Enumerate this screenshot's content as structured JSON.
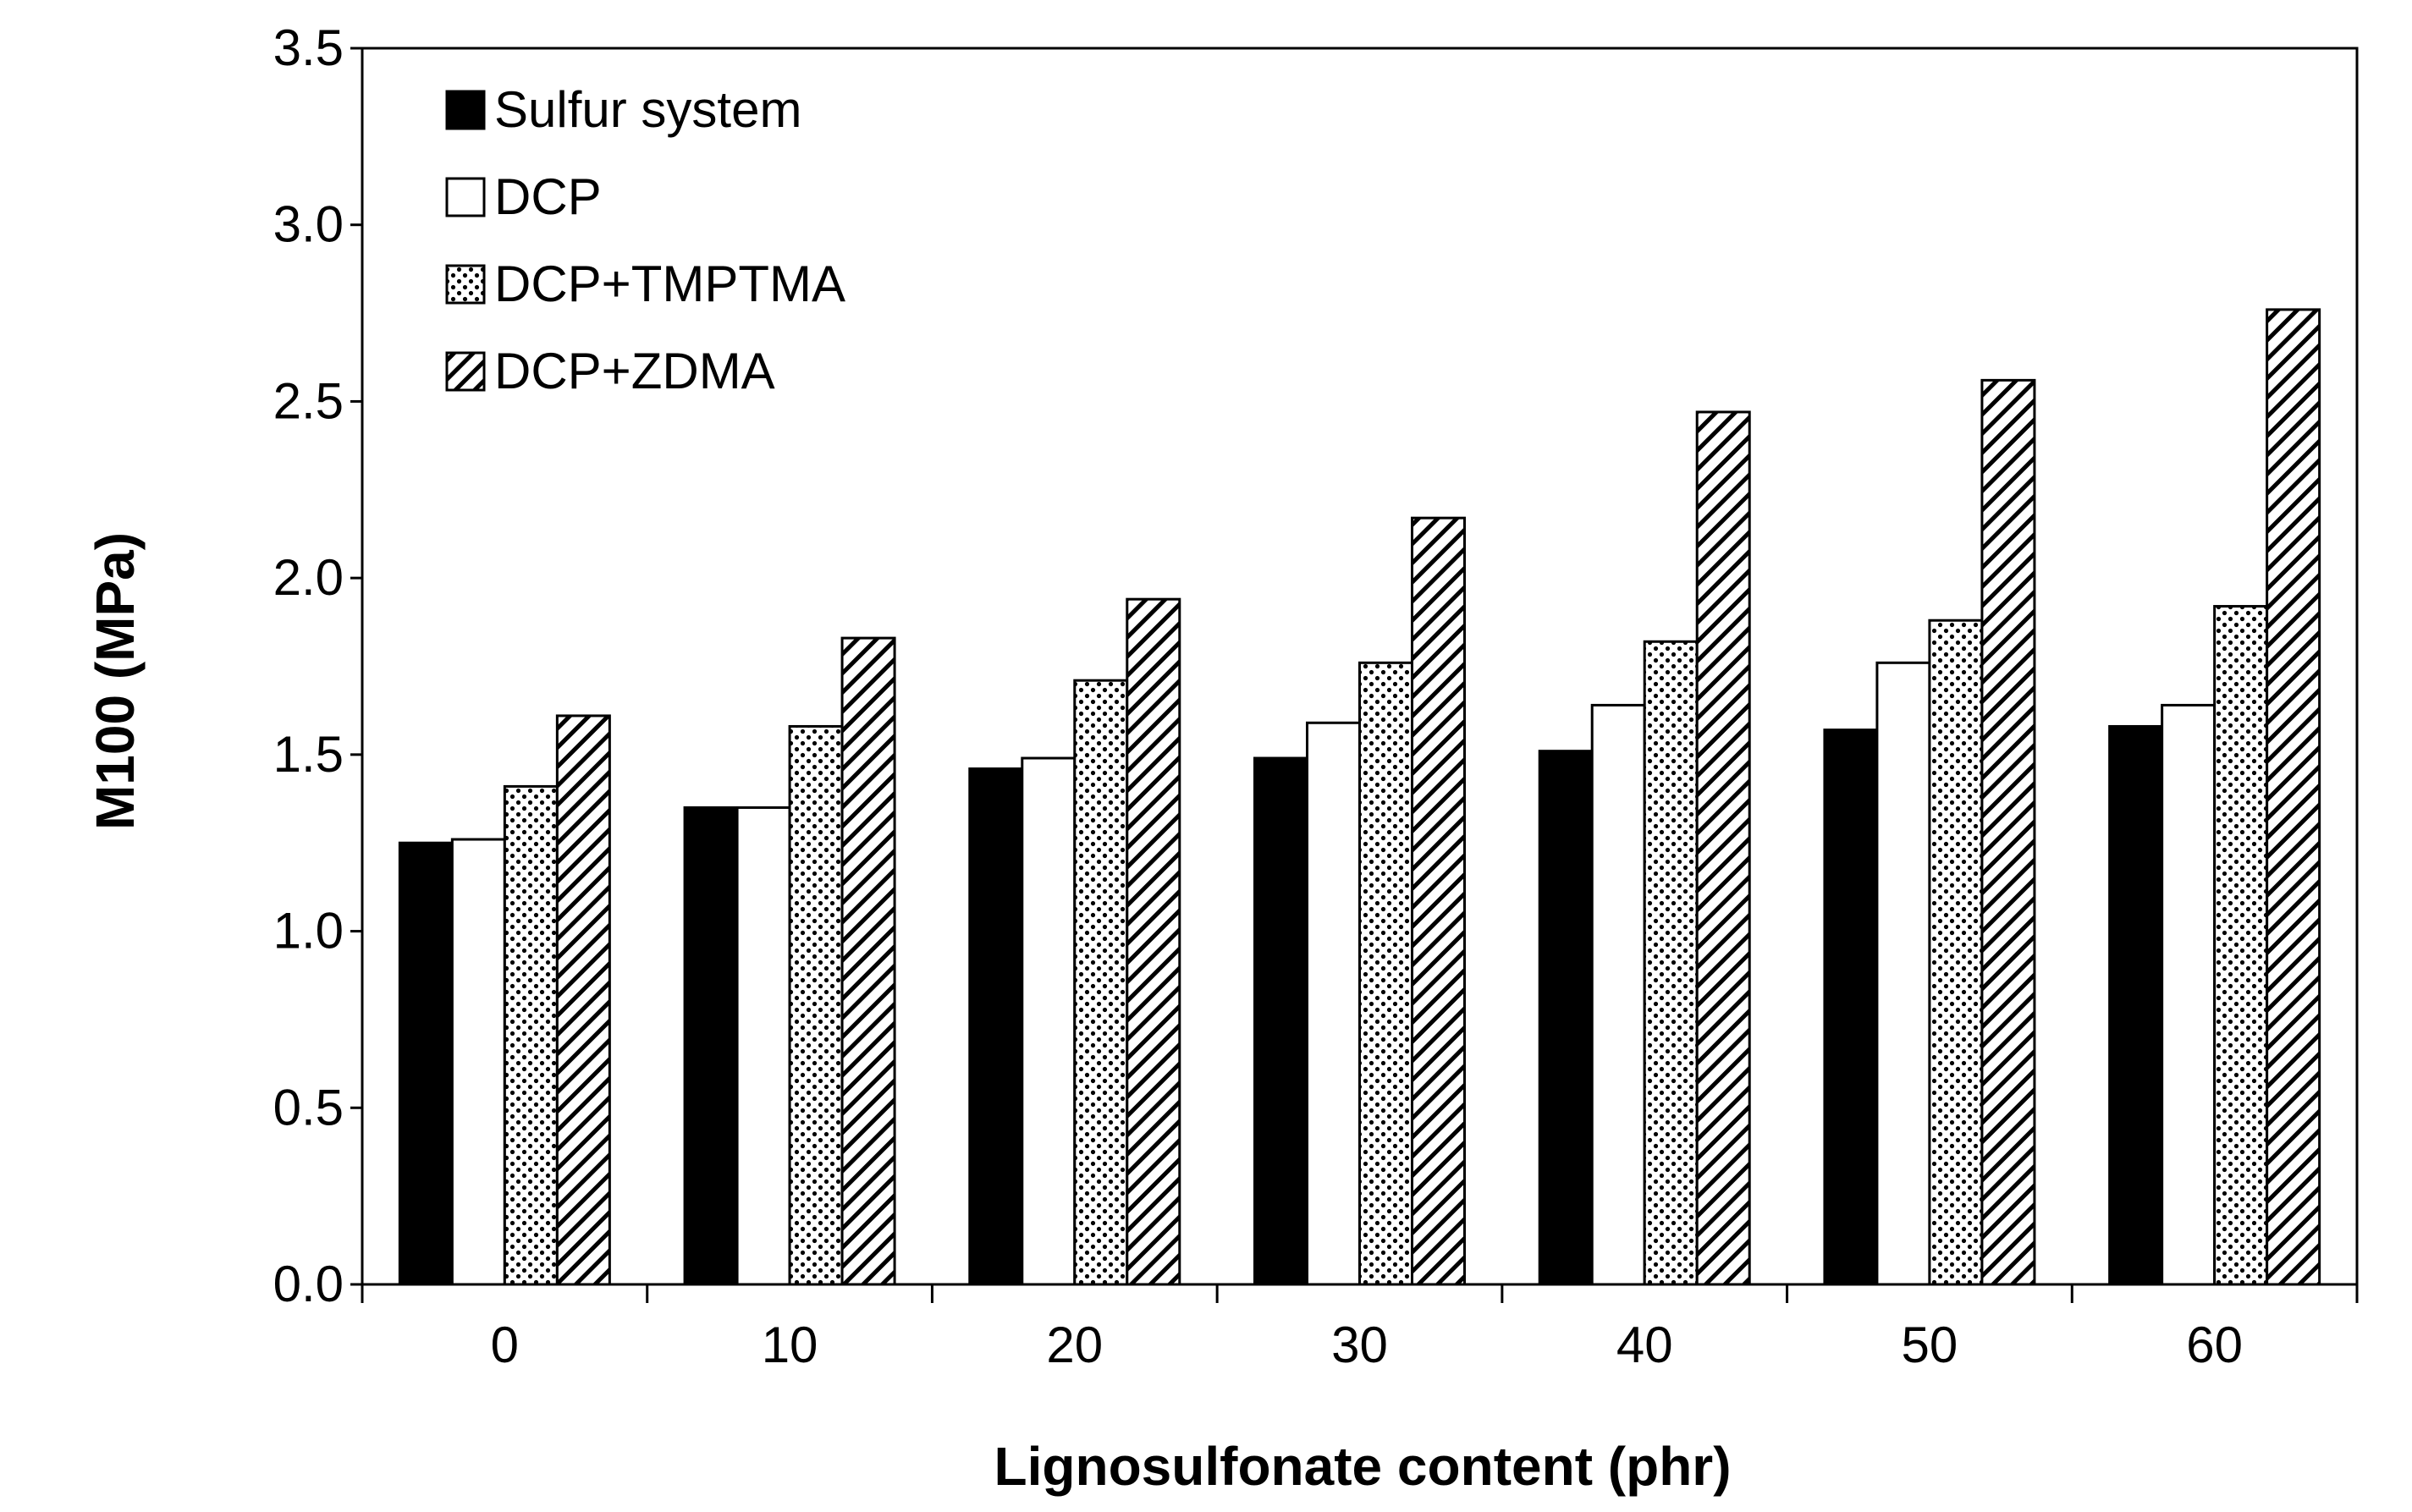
{
  "chart_data": {
    "type": "bar",
    "title": "",
    "xlabel": "Lignosulfonate content (phr)",
    "ylabel": "M100 (MPa)",
    "ylim": [
      0,
      3.5
    ],
    "yticks": [
      "0.0",
      "0.5",
      "1.0",
      "1.5",
      "2.0",
      "2.5",
      "3.0",
      "3.5"
    ],
    "categories": [
      "0",
      "10",
      "20",
      "30",
      "40",
      "50",
      "60"
    ],
    "legend_position": "top-left",
    "grid": false,
    "series": [
      {
        "name": "Sulfur system",
        "pattern": "solid",
        "color": "#000000",
        "values": [
          1.25,
          1.35,
          1.46,
          1.49,
          1.51,
          1.57,
          1.58
        ]
      },
      {
        "name": "DCP",
        "pattern": "empty",
        "color": "#ffffff",
        "values": [
          1.26,
          1.35,
          1.49,
          1.59,
          1.64,
          1.76,
          1.64
        ]
      },
      {
        "name": "DCP+TMPTMA",
        "pattern": "dots",
        "color": "#ffffff",
        "values": [
          1.41,
          1.58,
          1.71,
          1.76,
          1.82,
          1.88,
          1.92
        ]
      },
      {
        "name": "DCP+ZDMA",
        "pattern": "hatch",
        "color": "#ffffff",
        "values": [
          1.61,
          1.83,
          1.94,
          2.17,
          2.47,
          2.56,
          2.76
        ]
      }
    ]
  }
}
